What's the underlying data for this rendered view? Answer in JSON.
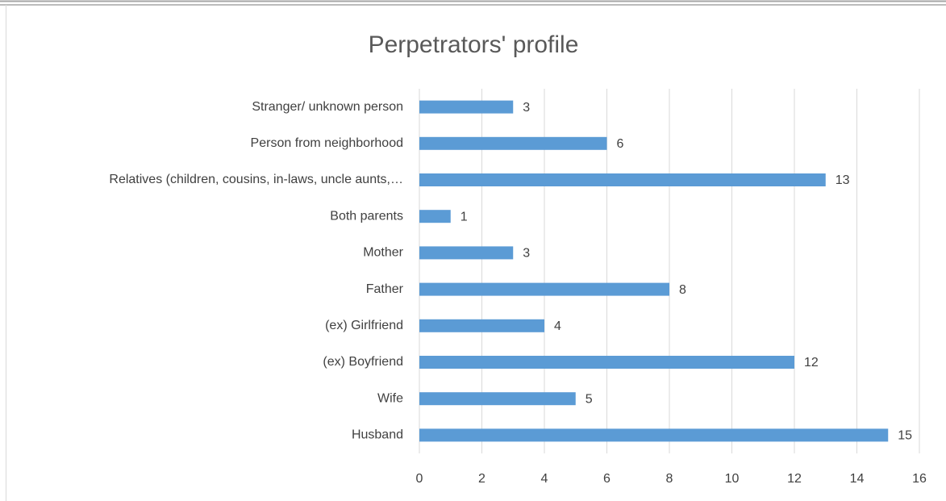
{
  "chart_data": {
    "type": "hbar",
    "title": "Perpetrators' profile",
    "categories": [
      "Stranger/ unknown person",
      "Person from neighborhood",
      "Relatives (children, cousins, in-laws, uncle aunts,…",
      "Both parents",
      "Mother",
      "Father",
      "(ex) Girlfriend",
      "(ex) Boyfriend",
      "Wife",
      "Husband"
    ],
    "values": [
      3,
      6,
      13,
      1,
      3,
      8,
      4,
      12,
      5,
      15
    ],
    "color": "#5b9bd5",
    "xlim": [
      0,
      16
    ],
    "xticks": [
      0,
      2,
      4,
      6,
      8,
      10,
      12,
      14,
      16
    ],
    "grid": true
  }
}
